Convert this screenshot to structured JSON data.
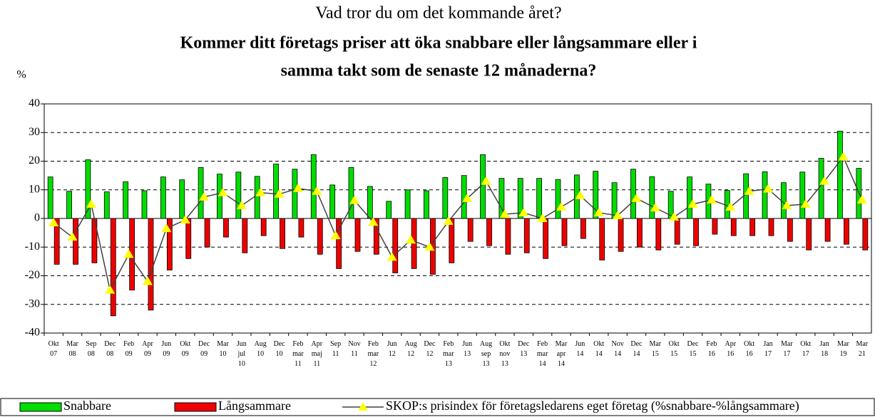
{
  "chart_data": {
    "type": "bar-line",
    "title": "Vad tror du om det kommande året?",
    "subtitle": [
      "Kommer ditt företags priser att öka snabbare eller långsammare eller i",
      "samma takt som de senaste 12 månaderna?"
    ],
    "ylabel": "%",
    "categories": [
      [
        "Okt",
        "07"
      ],
      [
        "Mar",
        "08"
      ],
      [
        "Sep",
        "08"
      ],
      [
        "Dec",
        "08"
      ],
      [
        "Feb",
        "09"
      ],
      [
        "Apr",
        "09"
      ],
      [
        "Jun",
        "09"
      ],
      [
        "Okt",
        "09"
      ],
      [
        "Dec",
        "09"
      ],
      [
        "Mar",
        "10"
      ],
      [
        "Jun",
        "jul",
        "10"
      ],
      [
        "Aug",
        "10"
      ],
      [
        "Dec",
        "10"
      ],
      [
        "Feb",
        "mar",
        "11"
      ],
      [
        "Apr",
        "maj",
        "11"
      ],
      [
        "Sep",
        "11"
      ],
      [
        "Nov",
        "11"
      ],
      [
        "Feb",
        "mar",
        "12"
      ],
      [
        "Jun",
        "12"
      ],
      [
        "Aug",
        "12"
      ],
      [
        "Dec",
        "12"
      ],
      [
        "Feb",
        "mar",
        "13"
      ],
      [
        "Jun",
        "13"
      ],
      [
        "Aug",
        "sep",
        "13"
      ],
      [
        "Okt",
        "nov",
        "13"
      ],
      [
        "Dec",
        "13"
      ],
      [
        "Feb",
        "mar",
        "14"
      ],
      [
        "Mar",
        "apr",
        "14"
      ],
      [
        "Jun",
        "14"
      ],
      [
        "Okt",
        "14"
      ],
      [
        "Nov",
        "14"
      ],
      [
        "Dec",
        "14"
      ],
      [
        "Mar",
        "15"
      ],
      [
        "Okt",
        "15"
      ],
      [
        "Dec",
        "15"
      ],
      [
        "Feb",
        "16"
      ],
      [
        "Apr",
        "16"
      ],
      [
        "Okt",
        "16"
      ],
      [
        "Jan",
        "17"
      ],
      [
        "Mar",
        "17"
      ],
      [
        "Okt",
        "17"
      ],
      [
        "Jan",
        "18"
      ],
      [
        "Mar",
        "19"
      ],
      [
        "Mar",
        "21"
      ]
    ],
    "series": [
      {
        "name": "Snabbare",
        "type": "bar",
        "color": "#00dd00",
        "values": [
          14.5,
          9.5,
          20.5,
          9.3,
          12.8,
          9.7,
          14.5,
          13.5,
          17.8,
          15.5,
          16.2,
          14.7,
          19,
          17.2,
          22.3,
          11.7,
          17.8,
          11.2,
          6,
          10,
          9.7,
          14.3,
          15,
          22.3,
          14,
          14,
          14,
          13.6,
          15.2,
          16.5,
          12.5,
          17.2,
          14.6,
          9.5,
          14.5,
          12,
          9.8,
          15.6,
          16.3,
          12.5,
          16.2,
          21,
          30.5,
          17.5
        ]
      },
      {
        "name": "Långsammare",
        "type": "bar",
        "color": "#ee0000",
        "values": [
          -16,
          -16,
          -15.5,
          -34,
          -25,
          -32,
          -18,
          -14,
          -10,
          -6.5,
          -12,
          -6,
          -10.5,
          -6.5,
          -12.5,
          -17.5,
          -11.5,
          -12.5,
          -19,
          -17.5,
          -19.5,
          -15.5,
          -8,
          -9.5,
          -12.5,
          -12,
          -14,
          -9.5,
          -7,
          -14.5,
          -11.5,
          -10,
          -11,
          -9,
          -9.5,
          -5.5,
          -6,
          -6,
          -6,
          -8,
          -11,
          -8,
          -9,
          -11
        ]
      },
      {
        "name": "SKOP:s prisindex för företagsledarens eget företag (%snabbare-%långsammare)",
        "type": "line",
        "color": "#404040",
        "marker_color": "#ffff00",
        "values": [
          -1.5,
          -6.5,
          5,
          -25,
          -12.5,
          -22,
          -3.5,
          -0.5,
          7.5,
          9,
          4.5,
          9,
          8.5,
          10.5,
          9.5,
          -6,
          6.3,
          -1.3,
          -13.5,
          -7.5,
          -10,
          -1,
          7,
          13,
          1.5,
          2,
          0,
          4,
          8,
          2,
          1,
          7,
          3.7,
          0.5,
          5,
          6.5,
          4,
          9.5,
          10.3,
          4.5,
          5,
          13,
          21.5,
          6.5
        ]
      }
    ],
    "ylim": [
      -40,
      40
    ],
    "yticks": [
      -40,
      -30,
      -20,
      -10,
      0,
      10,
      20,
      30,
      40
    ],
    "grid": true,
    "legend": "bottom"
  }
}
